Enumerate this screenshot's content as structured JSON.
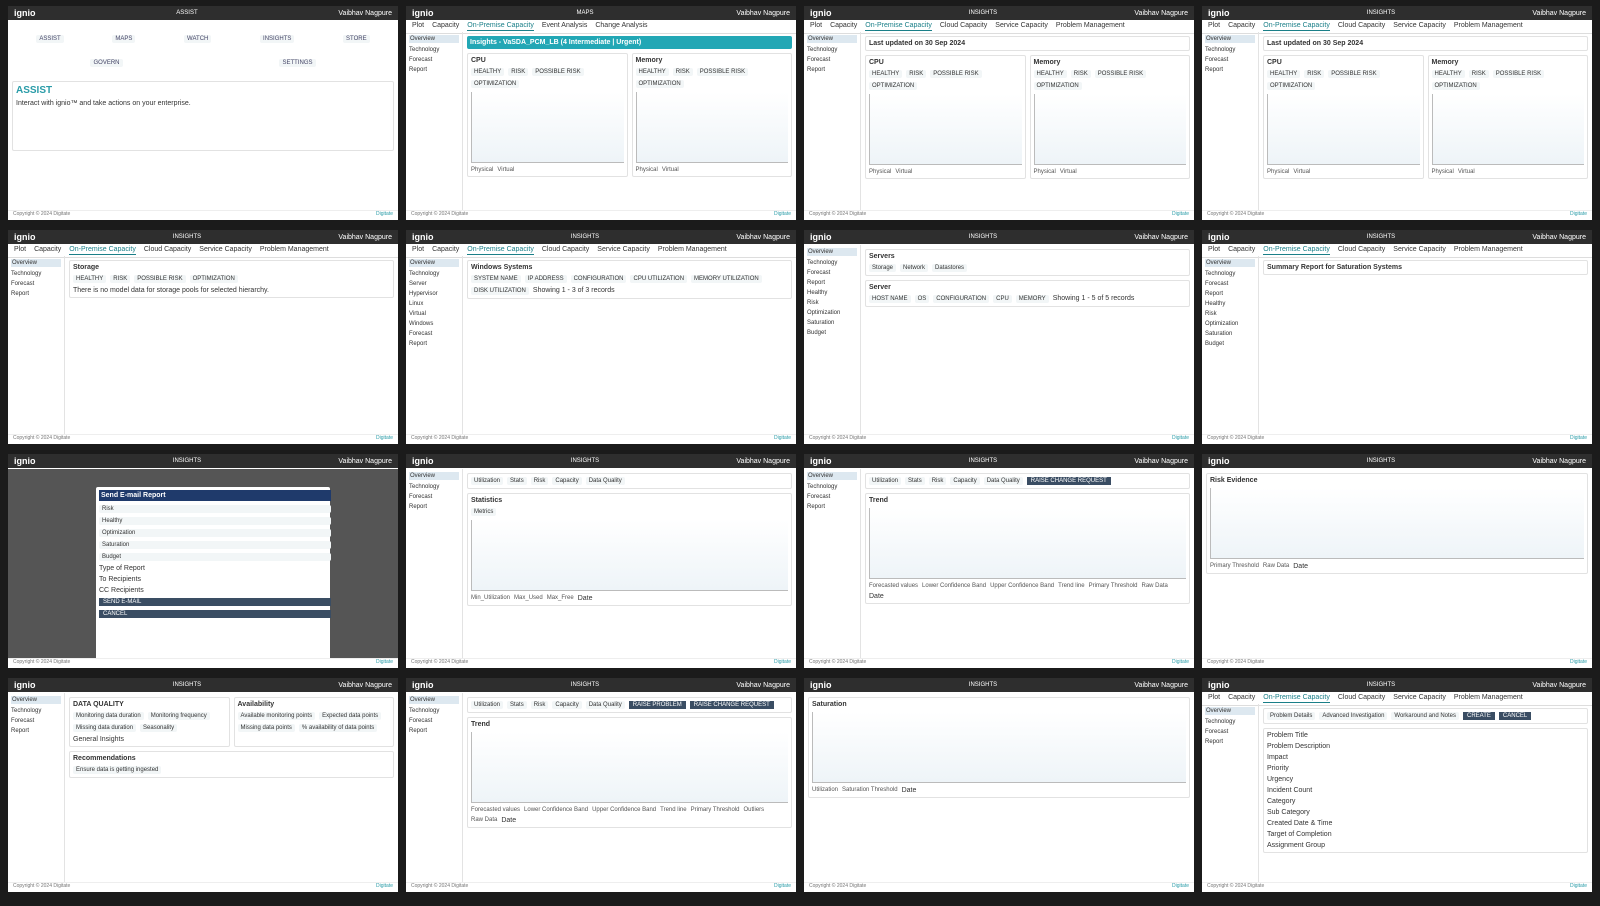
{
  "brand": {
    "logo": "ignio",
    "user": "Vaibhav Nagpure",
    "copyright": "Copyright © 2024 Digitate",
    "company": "Digitate"
  },
  "tiles": [
    {
      "section": "ASSIST",
      "blocks": [
        {
          "kind": "icons",
          "items": [
            "ASSIST",
            "MAPS",
            "WATCH",
            "INSIGHTS",
            "STORE",
            "GOVERN",
            "SETTINGS"
          ]
        },
        {
          "kind": "hero",
          "title": "ASSIST",
          "text": "Interact with ignio™ and take actions on your enterprise."
        }
      ]
    },
    {
      "section": "MAPS",
      "tabs": [
        "Plot",
        "Capacity",
        "On-Premise Capacity",
        "Event Analysis",
        "Change Analysis"
      ],
      "sidebar": [
        "Overview",
        "Technology",
        "Forecast",
        "Report"
      ],
      "blocks": [
        {
          "kind": "banner",
          "title": "Insights - VaSDA_PCM_LB (4 Intermediate | Urgent)"
        },
        {
          "kind": "chart",
          "title": "CPU",
          "items": [
            "HEALTHY",
            "RISK",
            "POSSIBLE RISK",
            "OPTIMIZATION"
          ],
          "legend": [
            "Physical",
            "Virtual"
          ]
        },
        {
          "kind": "chart",
          "title": "Memory",
          "items": [
            "HEALTHY",
            "RISK",
            "POSSIBLE RISK",
            "OPTIMIZATION"
          ],
          "legend": [
            "Physical",
            "Virtual"
          ]
        }
      ]
    },
    {
      "section": "INSIGHTS",
      "tabs": [
        "Plot",
        "Capacity",
        "On-Premise Capacity",
        "Cloud Capacity",
        "Service Capacity",
        "Problem Management"
      ],
      "sidebar": [
        "Overview",
        "Technology",
        "Forecast",
        "Report"
      ],
      "blocks": [
        {
          "kind": "note",
          "title": "Last updated on 30 Sep 2024"
        },
        {
          "kind": "chart",
          "title": "CPU",
          "items": [
            "HEALTHY",
            "RISK",
            "POSSIBLE RISK",
            "OPTIMIZATION"
          ],
          "legend": [
            "Physical",
            "Virtual"
          ]
        },
        {
          "kind": "chart",
          "title": "Memory",
          "items": [
            "HEALTHY",
            "RISK",
            "POSSIBLE RISK",
            "OPTIMIZATION"
          ],
          "legend": [
            "Physical",
            "Virtual"
          ]
        }
      ]
    },
    {
      "section": "INSIGHTS",
      "tabs": [
        "Plot",
        "Capacity",
        "On-Premise Capacity",
        "Cloud Capacity",
        "Service Capacity",
        "Problem Management"
      ],
      "sidebar": [
        "Overview",
        "Technology",
        "Forecast",
        "Report"
      ],
      "blocks": [
        {
          "kind": "note",
          "title": "Last updated on 30 Sep 2024"
        },
        {
          "kind": "chart",
          "title": "CPU",
          "items": [
            "HEALTHY",
            "RISK",
            "POSSIBLE RISK",
            "OPTIMIZATION"
          ],
          "legend": [
            "Physical",
            "Virtual"
          ]
        },
        {
          "kind": "chart",
          "title": "Memory",
          "items": [
            "HEALTHY",
            "RISK",
            "POSSIBLE RISK",
            "OPTIMIZATION"
          ],
          "legend": [
            "Physical",
            "Virtual"
          ]
        }
      ]
    },
    {
      "section": "INSIGHTS",
      "tabs": [
        "Plot",
        "Capacity",
        "On-Premise Capacity",
        "Cloud Capacity",
        "Service Capacity",
        "Problem Management"
      ],
      "sidebar": [
        "Overview",
        "Technology",
        "Forecast",
        "Report"
      ],
      "blocks": [
        {
          "kind": "panel",
          "title": "Storage",
          "items": [
            "HEALTHY",
            "RISK",
            "POSSIBLE RISK",
            "OPTIMIZATION"
          ],
          "text": "There is no model data for storage pools for selected hierarchy."
        }
      ]
    },
    {
      "section": "INSIGHTS",
      "tabs": [
        "Plot",
        "Capacity",
        "On-Premise Capacity",
        "Cloud Capacity",
        "Service Capacity",
        "Problem Management"
      ],
      "sidebar": [
        "Overview",
        "Technology",
        "Server",
        "Hypervisor",
        "Linux",
        "Virtual",
        "Windows",
        "Forecast",
        "Report"
      ],
      "blocks": [
        {
          "kind": "table",
          "title": "Windows Systems",
          "items": [
            "SYSTEM NAME",
            "IP ADDRESS",
            "CONFIGURATION",
            "CPU UTILIZATION",
            "MEMORY UTILIZATION",
            "DISK UTILIZATION"
          ],
          "text": "Showing 1 - 3 of 3 records"
        }
      ]
    },
    {
      "section": "INSIGHTS",
      "sidebar": [
        "Overview",
        "Technology",
        "Forecast",
        "Report",
        "Healthy",
        "Risk",
        "Optimization",
        "Saturation",
        "Budget"
      ],
      "blocks": [
        {
          "kind": "panel",
          "title": "Servers",
          "items": [
            "Storage",
            "Network",
            "Datastores"
          ]
        },
        {
          "kind": "table",
          "title": "Server",
          "items": [
            "HOST NAME",
            "OS",
            "CONFIGURATION",
            "CPU",
            "MEMORY"
          ],
          "text": "Showing 1 - 5 of 5 records"
        }
      ]
    },
    {
      "section": "INSIGHTS",
      "tabs": [
        "Plot",
        "Capacity",
        "On-Premise Capacity",
        "Cloud Capacity",
        "Service Capacity",
        "Problem Management"
      ],
      "sidebar": [
        "Overview",
        "Technology",
        "Forecast",
        "Report",
        "Healthy",
        "Risk",
        "Optimization",
        "Saturation",
        "Budget"
      ],
      "blocks": [
        {
          "kind": "panel",
          "title": "Summary Report for Saturation Systems"
        }
      ]
    },
    {
      "section": "INSIGHTS",
      "blocks": [
        {
          "kind": "modal",
          "title": "Send E-mail Report",
          "items": [
            "Risk",
            "Healthy",
            "Optimization",
            "Saturation",
            "Budget"
          ],
          "text": "Type of Report",
          "fields": [
            "To Recipients",
            "CC Recipients"
          ],
          "buttons": [
            "SEND E-MAIL",
            "CANCEL"
          ]
        }
      ]
    },
    {
      "section": "INSIGHTS",
      "sidebar": [
        "Overview",
        "Technology",
        "Forecast",
        "Report"
      ],
      "blocks": [
        {
          "kind": "tabsrow",
          "items": [
            "Utilization",
            "Stats",
            "Risk",
            "Capacity",
            "Data Quality"
          ]
        },
        {
          "kind": "chart",
          "title": "Statistics",
          "items": [
            "Metrics"
          ],
          "legend": [
            "Min_Utilization",
            "Max_Used",
            "Max_Free"
          ],
          "text": "Date"
        }
      ]
    },
    {
      "section": "INSIGHTS",
      "sidebar": [
        "Overview",
        "Technology",
        "Forecast",
        "Report"
      ],
      "blocks": [
        {
          "kind": "tabsrow",
          "items": [
            "Utilization",
            "Stats",
            "Risk",
            "Capacity",
            "Data Quality"
          ],
          "buttons": [
            "RAISE CHANGE REQUEST"
          ]
        },
        {
          "kind": "chart",
          "title": "Trend",
          "legend": [
            "Forecasted values",
            "Lower Confidence Band",
            "Upper Confidence Band",
            "Trend line",
            "Primary Threshold",
            "Raw Data"
          ],
          "text": "Date"
        }
      ]
    },
    {
      "section": "INSIGHTS",
      "blocks": [
        {
          "kind": "chart",
          "title": "Risk Evidence",
          "legend": [
            "Primary Threshold",
            "Raw Data"
          ],
          "text": "Date"
        }
      ]
    },
    {
      "section": "INSIGHTS",
      "sidebar": [
        "Overview",
        "Technology",
        "Forecast",
        "Report"
      ],
      "blocks": [
        {
          "kind": "panel",
          "title": "DATA QUALITY",
          "text": "General Insights",
          "items": [
            "Monitoring data duration",
            "Monitoring frequency",
            "Missing data duration",
            "Seasonality"
          ]
        },
        {
          "kind": "panel",
          "title": "Availability",
          "items": [
            "Available monitoring points",
            "Expected data points",
            "Missing data points",
            "% availability of data points"
          ]
        },
        {
          "kind": "panel",
          "title": "Recommendations",
          "items": [
            "Ensure data is getting ingested"
          ]
        }
      ]
    },
    {
      "section": "INSIGHTS",
      "sidebar": [
        "Overview",
        "Technology",
        "Forecast",
        "Report"
      ],
      "blocks": [
        {
          "kind": "tabsrow",
          "items": [
            "Utilization",
            "Stats",
            "Risk",
            "Capacity",
            "Data Quality"
          ],
          "buttons": [
            "RAISE PROBLEM",
            "RAISE CHANGE REQUEST"
          ]
        },
        {
          "kind": "chart",
          "title": "Trend",
          "legend": [
            "Forecasted values",
            "Lower Confidence Band",
            "Upper Confidence Band",
            "Trend line",
            "Primary Threshold",
            "Outliers",
            "Raw Data"
          ],
          "text": "Date"
        }
      ]
    },
    {
      "section": "INSIGHTS",
      "blocks": [
        {
          "kind": "chart",
          "title": "Saturation",
          "legend": [
            "Utilization",
            "Saturation Threshold"
          ],
          "text": "Date"
        }
      ]
    },
    {
      "section": "INSIGHTS",
      "tabs": [
        "Plot",
        "Capacity",
        "On-Premise Capacity",
        "Cloud Capacity",
        "Service Capacity",
        "Problem Management"
      ],
      "sidebar": [
        "Overview",
        "Technology",
        "Forecast",
        "Report"
      ],
      "blocks": [
        {
          "kind": "steps",
          "items": [
            "Problem Details",
            "Advanced Investigation",
            "Workaround and Notes"
          ],
          "buttons": [
            "CREATE",
            "CANCEL"
          ]
        },
        {
          "kind": "form",
          "fields": [
            "Problem Title",
            "Problem Description",
            "Impact",
            "Priority",
            "Urgency",
            "Incident Count",
            "Category",
            "Sub Category",
            "Created Date & Time",
            "Target of Completion",
            "Assignment Group"
          ]
        }
      ]
    }
  ]
}
